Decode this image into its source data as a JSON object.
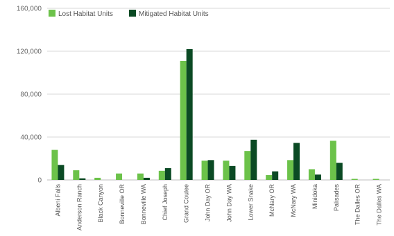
{
  "chart_data": {
    "type": "bar",
    "title": "",
    "xlabel": "",
    "ylabel": "",
    "ylim": [
      0,
      160000
    ],
    "y_ticks": [
      "0",
      "40,000",
      "80,000",
      "120,000",
      "160,000"
    ],
    "y_tick_values": [
      0,
      40000,
      80000,
      120000,
      160000
    ],
    "grid": true,
    "legend_position": "top-left",
    "categories": [
      "Albeni Falls",
      "Anderson Ranch",
      "Black Canyon",
      "Bonneville OR",
      "Bonneville WA",
      "Chief Joseph",
      "Grand Coulee",
      "John Day OR",
      "John Day WA",
      "Lower Snake",
      "McNary OR",
      "McNary WA",
      "Minidoka",
      "Palisades",
      "The Dalles OR",
      "The Dalles WA"
    ],
    "series": [
      {
        "name": "Lost Habitat Units",
        "color": "#6cc24a",
        "values": [
          28000,
          9000,
          2000,
          6000,
          6000,
          8500,
          111000,
          18000,
          18000,
          27000,
          4500,
          18500,
          10000,
          36500,
          1000,
          1000
        ]
      },
      {
        "name": "Mitigated Habitat Units",
        "color": "#0b4a24",
        "values": [
          14000,
          1500,
          0,
          0,
          2000,
          11000,
          122000,
          18500,
          13000,
          37500,
          8000,
          34500,
          5000,
          16000,
          0,
          0
        ]
      }
    ]
  }
}
